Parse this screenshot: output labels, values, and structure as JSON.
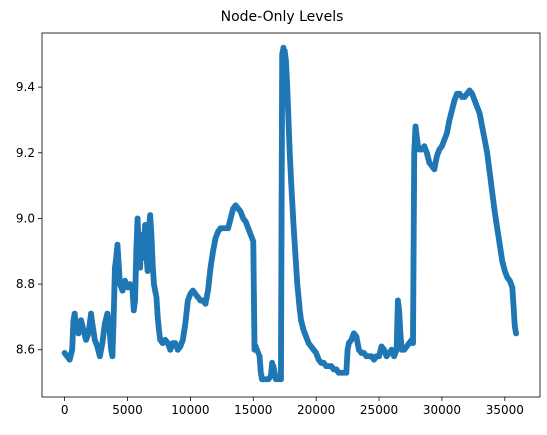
{
  "chart_data": {
    "type": "scatter",
    "title": "Node-Only Levels",
    "xlabel": "",
    "ylabel": "",
    "xlim": [
      -1800,
      37800
    ],
    "ylim": [
      8.456,
      9.565
    ],
    "x_ticks": [
      0,
      5000,
      10000,
      15000,
      20000,
      25000,
      30000,
      35000
    ],
    "x_tick_labels": [
      "0",
      "5000",
      "10000",
      "15000",
      "20000",
      "25000",
      "30000",
      "35000"
    ],
    "y_ticks": [
      8.6,
      8.8,
      9.0,
      9.2,
      9.4
    ],
    "y_tick_labels": [
      "8.6",
      "8.8",
      "9.0",
      "9.2",
      "9.4"
    ],
    "grid": false,
    "marker_color": "#1f77b4",
    "series": [
      {
        "name": "",
        "points": [
          [
            0,
            8.59
          ],
          [
            200,
            8.58
          ],
          [
            400,
            8.57
          ],
          [
            600,
            8.6
          ],
          [
            700,
            8.69
          ],
          [
            800,
            8.71
          ],
          [
            900,
            8.67
          ],
          [
            1100,
            8.65
          ],
          [
            1300,
            8.69
          ],
          [
            1500,
            8.66
          ],
          [
            1700,
            8.63
          ],
          [
            1900,
            8.65
          ],
          [
            2100,
            8.71
          ],
          [
            2200,
            8.68
          ],
          [
            2400,
            8.63
          ],
          [
            2600,
            8.61
          ],
          [
            2800,
            8.58
          ],
          [
            3000,
            8.62
          ],
          [
            3200,
            8.68
          ],
          [
            3400,
            8.71
          ],
          [
            3500,
            8.69
          ],
          [
            3700,
            8.6
          ],
          [
            3800,
            8.58
          ],
          [
            3900,
            8.7
          ],
          [
            4000,
            8.85
          ],
          [
            4100,
            8.88
          ],
          [
            4200,
            8.92
          ],
          [
            4300,
            8.86
          ],
          [
            4400,
            8.8
          ],
          [
            4600,
            8.78
          ],
          [
            4800,
            8.81
          ],
          [
            5000,
            8.79
          ],
          [
            5200,
            8.8
          ],
          [
            5400,
            8.78
          ],
          [
            5500,
            8.72
          ],
          [
            5600,
            8.75
          ],
          [
            5700,
            8.9
          ],
          [
            5800,
            9.0
          ],
          [
            5900,
            8.9
          ],
          [
            6000,
            8.85
          ],
          [
            6100,
            8.95
          ],
          [
            6200,
            8.88
          ],
          [
            6300,
            8.92
          ],
          [
            6400,
            8.98
          ],
          [
            6500,
            8.89
          ],
          [
            6600,
            8.84
          ],
          [
            6700,
            8.97
          ],
          [
            6800,
            9.01
          ],
          [
            6900,
            8.95
          ],
          [
            7000,
            8.86
          ],
          [
            7100,
            8.8
          ],
          [
            7200,
            8.78
          ],
          [
            7300,
            8.76
          ],
          [
            7400,
            8.7
          ],
          [
            7500,
            8.66
          ],
          [
            7600,
            8.63
          ],
          [
            7800,
            8.62
          ],
          [
            8000,
            8.63
          ],
          [
            8200,
            8.62
          ],
          [
            8400,
            8.6
          ],
          [
            8600,
            8.62
          ],
          [
            8800,
            8.62
          ],
          [
            9000,
            8.6
          ],
          [
            9200,
            8.61
          ],
          [
            9400,
            8.63
          ],
          [
            9600,
            8.68
          ],
          [
            9800,
            8.75
          ],
          [
            10000,
            8.77
          ],
          [
            10200,
            8.78
          ],
          [
            10400,
            8.77
          ],
          [
            10600,
            8.76
          ],
          [
            10800,
            8.75
          ],
          [
            11000,
            8.75
          ],
          [
            11200,
            8.74
          ],
          [
            11400,
            8.78
          ],
          [
            11600,
            8.85
          ],
          [
            11800,
            8.9
          ],
          [
            12000,
            8.94
          ],
          [
            12200,
            8.96
          ],
          [
            12400,
            8.97
          ],
          [
            12600,
            8.97
          ],
          [
            12800,
            8.97
          ],
          [
            13000,
            8.97
          ],
          [
            13200,
            9.0
          ],
          [
            13400,
            9.03
          ],
          [
            13600,
            9.04
          ],
          [
            13800,
            9.03
          ],
          [
            14000,
            9.02
          ],
          [
            14200,
            9.0
          ],
          [
            14400,
            8.99
          ],
          [
            14600,
            8.97
          ],
          [
            14800,
            8.95
          ],
          [
            15000,
            8.93
          ],
          [
            15100,
            8.6
          ],
          [
            15200,
            8.61
          ],
          [
            15300,
            8.6
          ],
          [
            15400,
            8.59
          ],
          [
            15500,
            8.58
          ],
          [
            15600,
            8.53
          ],
          [
            15700,
            8.51
          ],
          [
            15800,
            8.51
          ],
          [
            16000,
            8.51
          ],
          [
            16200,
            8.51
          ],
          [
            16400,
            8.52
          ],
          [
            16500,
            8.56
          ],
          [
            16600,
            8.55
          ],
          [
            16700,
            8.53
          ],
          [
            16800,
            8.51
          ],
          [
            17000,
            8.51
          ],
          [
            17200,
            8.51
          ],
          [
            17300,
            9.5
          ],
          [
            17400,
            9.52
          ],
          [
            17500,
            9.51
          ],
          [
            17600,
            9.48
          ],
          [
            17700,
            9.4
          ],
          [
            17800,
            9.3
          ],
          [
            17900,
            9.2
          ],
          [
            18000,
            9.12
          ],
          [
            18100,
            9.05
          ],
          [
            18200,
            8.98
          ],
          [
            18300,
            8.92
          ],
          [
            18400,
            8.86
          ],
          [
            18500,
            8.8
          ],
          [
            18600,
            8.76
          ],
          [
            18700,
            8.72
          ],
          [
            18800,
            8.69
          ],
          [
            19000,
            8.66
          ],
          [
            19200,
            8.64
          ],
          [
            19400,
            8.62
          ],
          [
            19600,
            8.61
          ],
          [
            19800,
            8.6
          ],
          [
            20000,
            8.59
          ],
          [
            20200,
            8.57
          ],
          [
            20400,
            8.56
          ],
          [
            20600,
            8.56
          ],
          [
            20800,
            8.55
          ],
          [
            21000,
            8.55
          ],
          [
            21200,
            8.55
          ],
          [
            21400,
            8.54
          ],
          [
            21600,
            8.54
          ],
          [
            21800,
            8.53
          ],
          [
            22000,
            8.53
          ],
          [
            22200,
            8.53
          ],
          [
            22400,
            8.53
          ],
          [
            22500,
            8.6
          ],
          [
            22600,
            8.62
          ],
          [
            22800,
            8.63
          ],
          [
            23000,
            8.65
          ],
          [
            23200,
            8.64
          ],
          [
            23400,
            8.6
          ],
          [
            23600,
            8.59
          ],
          [
            23800,
            8.59
          ],
          [
            24000,
            8.58
          ],
          [
            24200,
            8.58
          ],
          [
            24400,
            8.58
          ],
          [
            24600,
            8.57
          ],
          [
            24800,
            8.58
          ],
          [
            25000,
            8.58
          ],
          [
            25200,
            8.61
          ],
          [
            25400,
            8.6
          ],
          [
            25600,
            8.58
          ],
          [
            25800,
            8.59
          ],
          [
            26000,
            8.6
          ],
          [
            26200,
            8.58
          ],
          [
            26400,
            8.6
          ],
          [
            26500,
            8.75
          ],
          [
            26600,
            8.72
          ],
          [
            26700,
            8.65
          ],
          [
            26800,
            8.6
          ],
          [
            27000,
            8.6
          ],
          [
            27200,
            8.61
          ],
          [
            27400,
            8.62
          ],
          [
            27600,
            8.63
          ],
          [
            27700,
            8.62
          ],
          [
            27800,
            9.2
          ],
          [
            27900,
            9.28
          ],
          [
            28000,
            9.25
          ],
          [
            28100,
            9.22
          ],
          [
            28200,
            9.21
          ],
          [
            28400,
            9.21
          ],
          [
            28600,
            9.22
          ],
          [
            28800,
            9.2
          ],
          [
            29000,
            9.17
          ],
          [
            29200,
            9.16
          ],
          [
            29400,
            9.15
          ],
          [
            29600,
            9.19
          ],
          [
            29800,
            9.21
          ],
          [
            30000,
            9.22
          ],
          [
            30200,
            9.24
          ],
          [
            30400,
            9.26
          ],
          [
            30600,
            9.3
          ],
          [
            30800,
            9.33
          ],
          [
            31000,
            9.36
          ],
          [
            31200,
            9.38
          ],
          [
            31400,
            9.38
          ],
          [
            31600,
            9.37
          ],
          [
            31800,
            9.37
          ],
          [
            32000,
            9.38
          ],
          [
            32200,
            9.39
          ],
          [
            32400,
            9.38
          ],
          [
            32600,
            9.36
          ],
          [
            32800,
            9.34
          ],
          [
            33000,
            9.32
          ],
          [
            33200,
            9.28
          ],
          [
            33400,
            9.24
          ],
          [
            33600,
            9.2
          ],
          [
            33800,
            9.14
          ],
          [
            34000,
            9.08
          ],
          [
            34200,
            9.02
          ],
          [
            34400,
            8.97
          ],
          [
            34600,
            8.92
          ],
          [
            34800,
            8.87
          ],
          [
            35000,
            8.84
          ],
          [
            35200,
            8.82
          ],
          [
            35400,
            8.81
          ],
          [
            35600,
            8.79
          ],
          [
            35700,
            8.73
          ],
          [
            35800,
            8.67
          ],
          [
            35900,
            8.65
          ]
        ]
      }
    ]
  }
}
